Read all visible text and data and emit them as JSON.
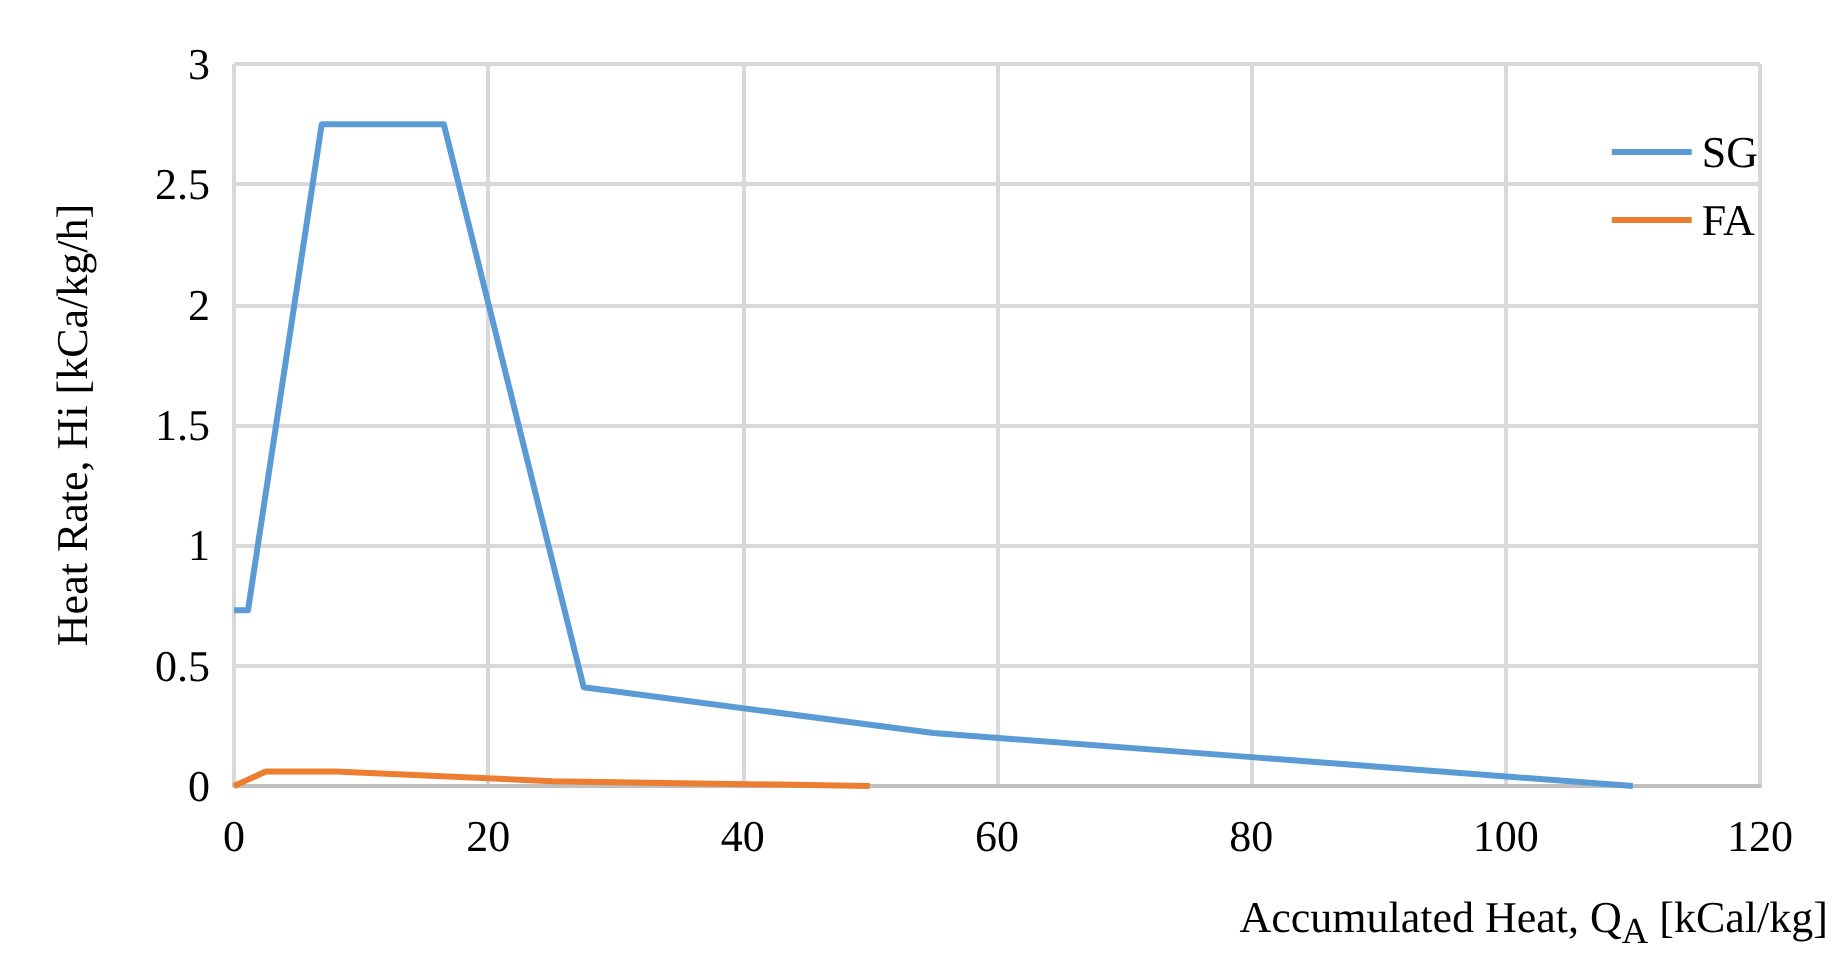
{
  "chart_data": {
    "type": "line",
    "xlabel": "Accumulated Heat, Q$_{A}$ [kCal/kg]",
    "ylabel": "Heat Rate, Hi [kCa/kg/h]",
    "series": [
      {
        "name": "SG",
        "color": "#5b9bd5",
        "x": [
          0,
          1.1,
          6.9,
          16.5,
          27.5,
          55,
          80,
          110
        ],
        "values": [
          0.73,
          0.73,
          2.75,
          2.75,
          0.41,
          0.22,
          0.12,
          0
        ]
      },
      {
        "name": "FA",
        "color": "#ed7d31",
        "x": [
          0,
          2.5,
          8,
          25,
          50
        ],
        "values": [
          0,
          0.06,
          0.06,
          0.02,
          0
        ]
      }
    ],
    "xlim": [
      0,
      120
    ],
    "xticks": [
      0,
      20,
      40,
      60,
      80,
      100,
      120
    ],
    "ylim": [
      0,
      3
    ],
    "yticks": [
      0,
      0.5,
      1,
      1.5,
      2,
      2.5,
      3
    ],
    "grid": true,
    "legend": "top right",
    "marker": "none",
    "line_style": "solid"
  }
}
